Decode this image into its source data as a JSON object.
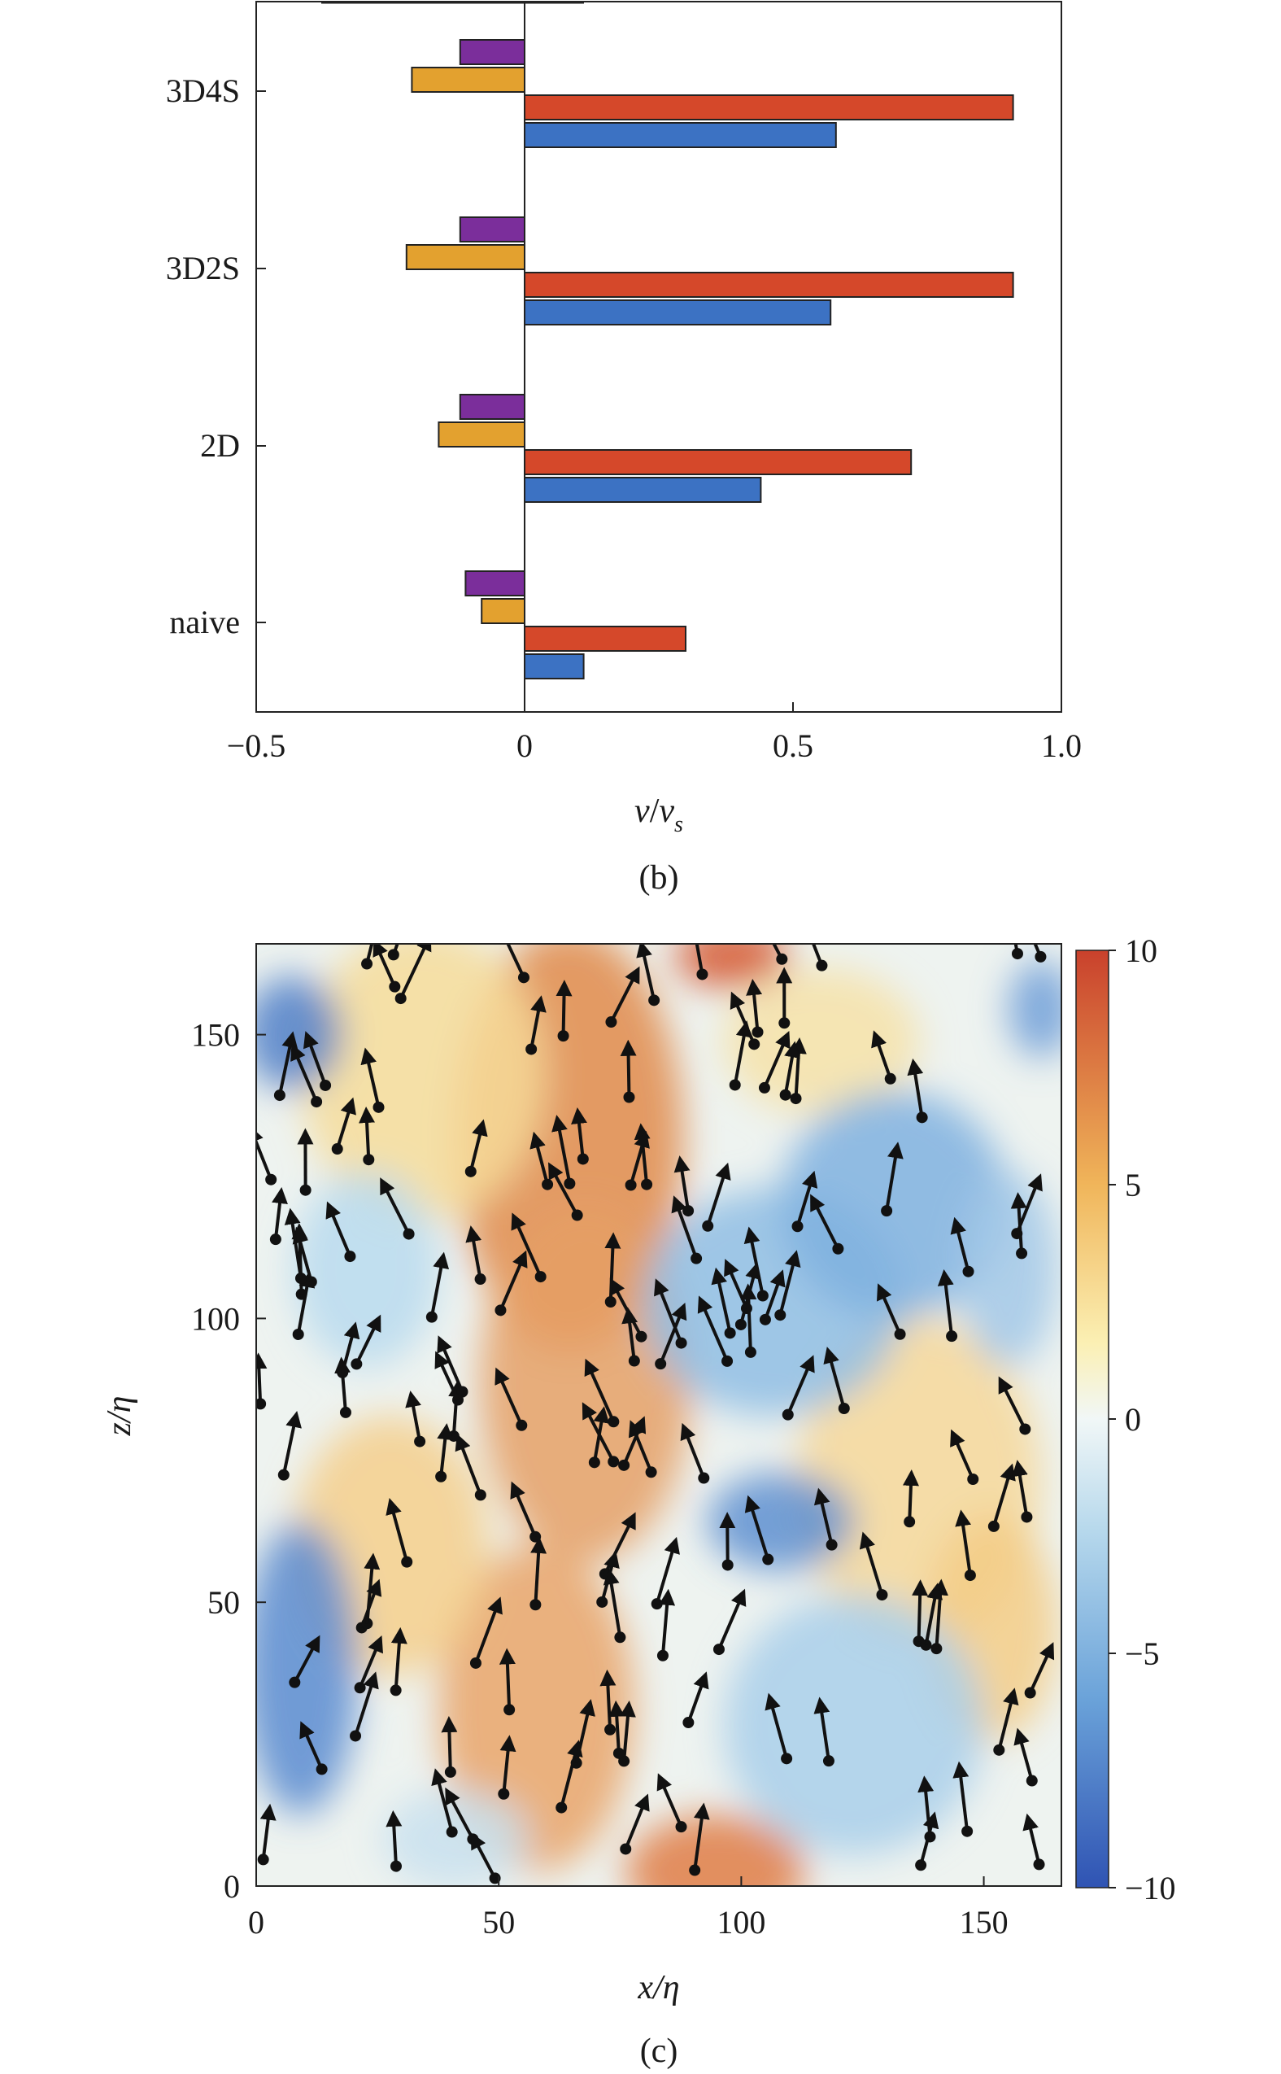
{
  "chart_data": [
    {
      "type": "bar",
      "orientation": "horizontal",
      "panel_label": "(b)",
      "xlabel_main": "v",
      "xlabel_sep": "/",
      "xlabel_denom": "v",
      "xlabel_sub": "s",
      "xlim": [
        -0.5,
        1.0
      ],
      "xticks": [
        -0.5,
        0,
        0.5,
        1.0
      ],
      "xtick_labels": [
        "−0.5",
        "0",
        "0.5",
        "1.0"
      ],
      "categories": [
        "naive",
        "2D",
        "3D2S",
        "3D4S"
      ],
      "series": [
        {
          "color": "#7b2e9b",
          "values": [
            -0.11,
            -0.12,
            -0.12,
            -0.12
          ]
        },
        {
          "color": "#e3a12f",
          "values": [
            -0.08,
            -0.16,
            -0.22,
            -0.21
          ]
        },
        {
          "color": "#d5482a",
          "values": [
            0.3,
            0.72,
            0.91,
            0.91
          ]
        },
        {
          "color": "#3c72c3",
          "values": [
            0.11,
            0.44,
            0.57,
            0.58
          ]
        }
      ]
    },
    {
      "type": "heatmap",
      "panel_label": "(c)",
      "xlabel_main": "x",
      "xlabel_rest": "/η",
      "ylabel_main": "z",
      "ylabel_rest": "/η",
      "xlim": [
        0,
        166
      ],
      "ylim": [
        0,
        166
      ],
      "xticks": [
        0,
        50,
        100,
        150
      ],
      "yticks": [
        0,
        50,
        100,
        150
      ],
      "colorbar": {
        "range": [
          -10,
          10
        ],
        "ticks": [
          10,
          5,
          0,
          -5,
          -10
        ],
        "tick_labels": [
          "10",
          "5",
          "0",
          "−5",
          "−10"
        ]
      },
      "arrow_color": "#111111"
    }
  ]
}
